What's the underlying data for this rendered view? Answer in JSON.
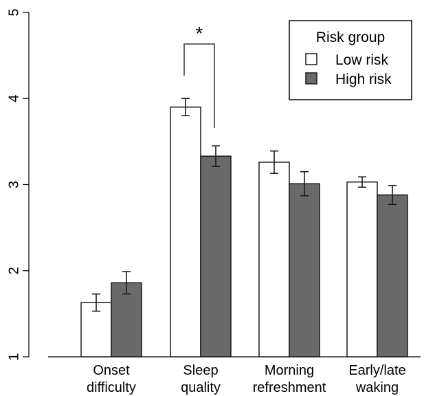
{
  "chart_data": {
    "type": "bar",
    "categories": [
      [
        "Onset",
        "difficulty"
      ],
      [
        "Sleep",
        "quality"
      ],
      [
        "Morning",
        "refreshment"
      ],
      [
        "Early/late",
        "waking"
      ]
    ],
    "series": [
      {
        "name": "Low risk",
        "values": [
          1.63,
          3.9,
          3.26,
          3.03
        ],
        "errors": [
          0.1,
          0.1,
          0.13,
          0.06
        ],
        "color": "#ffffff"
      },
      {
        "name": "High risk",
        "values": [
          1.86,
          3.33,
          3.01,
          2.88
        ],
        "errors": [
          0.13,
          0.12,
          0.14,
          0.11
        ],
        "color": "#6a6a6a"
      }
    ],
    "ylim": [
      1,
      5
    ],
    "yticks": [
      "1",
      "2",
      "3",
      "4",
      "5"
    ],
    "legend": {
      "title": "Risk group",
      "position": "top-right"
    },
    "significance": [
      {
        "category_index": 1,
        "label": "*"
      }
    ],
    "xlabel": "",
    "ylabel": ""
  }
}
